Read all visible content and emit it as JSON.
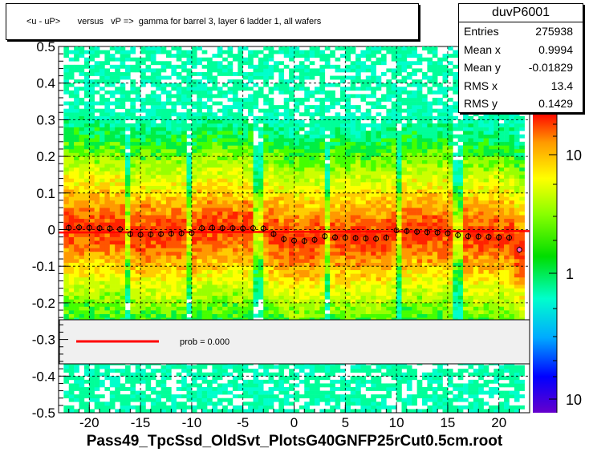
{
  "title": "<u - uP>       versus   vP =>  gamma for barrel 3, layer 6 ladder 1, all wafers",
  "stats": {
    "name": "duvP6001",
    "rows": [
      {
        "key": "Entries",
        "value": "275938"
      },
      {
        "key": "Mean x",
        "value": "0.9994"
      },
      {
        "key": "Mean y",
        "value": "-0.01829"
      },
      {
        "key": "RMS x",
        "value": "13.4"
      },
      {
        "key": "RMS y",
        "value": "0.1429"
      }
    ]
  },
  "legend": {
    "label": "prob = 0.000",
    "line_color": "#ff0000"
  },
  "footer": "Pass49_TpcSsd_OldSvt_PlotsG40GNFP25rCut0.5cm.root",
  "chart_data": {
    "type": "heatmap",
    "title": "<u - uP>       versus   vP =>  gamma for barrel 3, layer 6 ladder 1, all wafers",
    "xlabel": "",
    "ylabel": "",
    "xlim": [
      -23,
      23
    ],
    "ylim": [
      -0.5,
      0.5
    ],
    "x_ticks": [
      -20,
      -15,
      -10,
      -5,
      0,
      5,
      10,
      15,
      20
    ],
    "x_tick_labels": [
      "-20",
      "-15",
      "-10",
      "-5",
      "0",
      "5",
      "10",
      "15",
      "20"
    ],
    "y_ticks": [
      -0.5,
      -0.4,
      -0.3,
      -0.2,
      -0.1,
      0,
      0.1,
      0.2,
      0.3,
      0.4,
      0.5
    ],
    "y_tick_labels": [
      "-0.5",
      "-0.4",
      "-0.3",
      "-0.2",
      "-0.1",
      "0",
      "0.1",
      "0.2",
      "0.3",
      "0.4",
      "0.5"
    ],
    "z_scale": "log",
    "z_tick_labels": [
      "10",
      "1",
      "10"
    ],
    "grid": true,
    "wafer_gaps_x": [
      -16.2,
      -10.2,
      -3.5,
      3.1,
      10.1,
      16.0
    ],
    "profile": {
      "x": [
        -22,
        -21,
        -20,
        -19,
        -18,
        -17,
        -16,
        -15,
        -14,
        -13,
        -12,
        -11,
        -10,
        -9,
        -8,
        -7,
        -6,
        -5,
        -4,
        -3,
        -2,
        -1,
        0,
        1,
        2,
        3,
        4,
        5,
        6,
        7,
        8,
        9,
        10,
        11,
        12,
        13,
        14,
        15,
        16,
        17,
        18,
        19,
        20,
        21,
        22
      ],
      "y": [
        0.005,
        0.006,
        0.005,
        0.004,
        0.003,
        0.001,
        -0.012,
        -0.014,
        -0.013,
        -0.012,
        -0.011,
        -0.01,
        -0.009,
        0.004,
        0.005,
        0.004,
        0.004,
        0.003,
        0.004,
        0.003,
        -0.012,
        -0.026,
        -0.03,
        -0.031,
        -0.028,
        -0.018,
        -0.021,
        -0.022,
        -0.023,
        -0.024,
        -0.025,
        -0.022,
        -0.002,
        -0.004,
        -0.006,
        -0.007,
        -0.008,
        -0.01,
        -0.015,
        -0.018,
        -0.019,
        -0.02,
        -0.021,
        -0.022,
        -0.055
      ]
    },
    "fit_line": {
      "x": [
        -23,
        23
      ],
      "y": [
        -0.008,
        -0.004
      ],
      "color": "#ff0000"
    }
  }
}
